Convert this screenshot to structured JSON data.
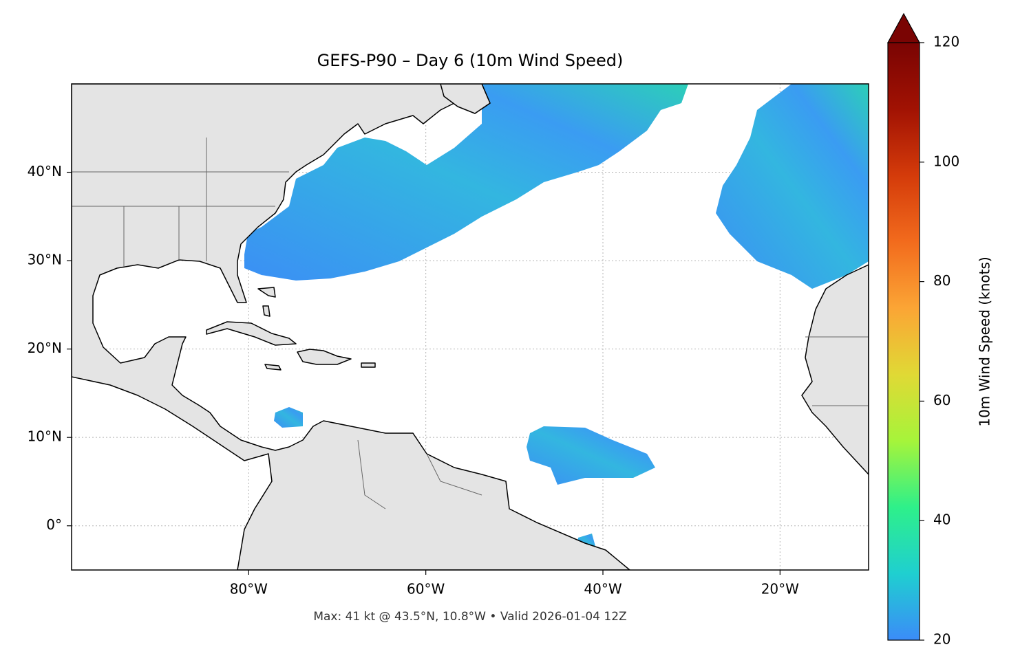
{
  "map": {
    "title": "GEFS-P90 – Day 6 (10m Wind Speed)",
    "footer": "Max: 41 kt @ 43.5°N, 10.8°W • Valid 2026-01-04 12Z",
    "xlim": [
      -100,
      -10
    ],
    "ylim": [
      -5,
      50
    ],
    "xticks": [
      {
        "value": -80,
        "label": "80°W"
      },
      {
        "value": -60,
        "label": "60°W"
      },
      {
        "value": -40,
        "label": "40°W"
      },
      {
        "value": -20,
        "label": "20°W"
      }
    ],
    "yticks": [
      {
        "value": 0,
        "label": "0°"
      },
      {
        "value": 10,
        "label": "10°N"
      },
      {
        "value": 20,
        "label": "20°N"
      },
      {
        "value": 30,
        "label": "30°N"
      },
      {
        "value": 40,
        "label": "40°N"
      }
    ],
    "grid": true,
    "colorbar": {
      "label": "10m Wind Speed (knots)",
      "lim": [
        20,
        120
      ],
      "ticks": [
        20,
        40,
        60,
        80,
        100,
        120
      ],
      "colors": [
        "#3b8cf8",
        "#1fcfd0",
        "#2ef08a",
        "#a6f43a",
        "#e0d935",
        "#fba535",
        "#f26b1d",
        "#d43b0a",
        "#a11203",
        "#7a0403"
      ]
    }
  }
}
